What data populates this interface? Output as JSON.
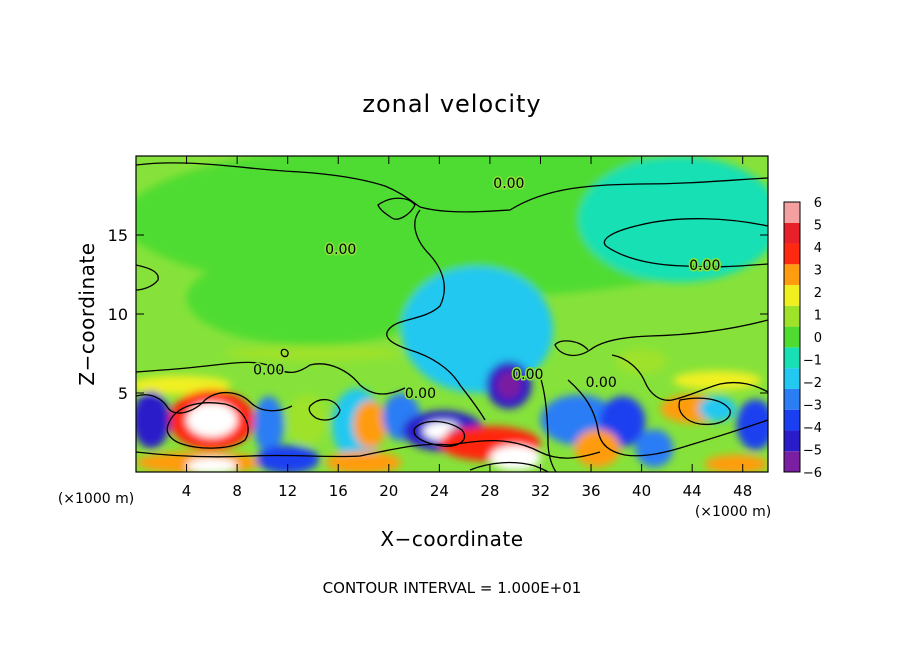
{
  "chart_data": {
    "type": "heatmap",
    "title": "zonal velocity",
    "xlabel": "X−coordinate",
    "ylabel": "Z−coordinate",
    "x_unit_left": "(×1000 m)",
    "x_unit_right": "(×1000 m)",
    "footer": "CONTOUR INTERVAL = 1.000E+01",
    "xlim": [
      0,
      50
    ],
    "ylim": [
      0,
      20
    ],
    "x_ticks": [
      4,
      8,
      12,
      16,
      20,
      24,
      28,
      32,
      36,
      40,
      44,
      48
    ],
    "x_tick_labels": [
      "4",
      "8",
      "12",
      "16",
      "20",
      "24",
      "28",
      "32",
      "36",
      "40",
      "44",
      "48"
    ],
    "y_ticks": [
      5,
      10,
      15
    ],
    "y_tick_labels": [
      "5",
      "10",
      "15"
    ],
    "colorbar": {
      "levels": [
        -6,
        -5,
        -4,
        -3,
        -2,
        -1,
        0,
        1,
        2,
        3,
        4,
        5,
        6
      ],
      "labels": [
        "6",
        "5",
        "4",
        "3",
        "2",
        "1",
        "0",
        "−1",
        "−2",
        "−3",
        "−4",
        "−5",
        "−6"
      ],
      "colors": [
        "#7a1fa2",
        "#2a1cc9",
        "#1a3ff0",
        "#2a7df5",
        "#22c8f0",
        "#19e0b4",
        "#4fdc30",
        "#9ee22a",
        "#f0f020",
        "#ff9c10",
        "#ff2810",
        "#e8202a",
        "#f5a0a0"
      ]
    },
    "background_color": "#86e23a",
    "contour_labels": [
      {
        "text": "0.00",
        "x": 16.2,
        "z": 14.1
      },
      {
        "text": "0.00",
        "x": 29.5,
        "z": 18.3
      },
      {
        "text": "0.00",
        "x": 45.0,
        "z": 13.1
      },
      {
        "text": "0.00",
        "x": 31.0,
        "z": 6.2
      },
      {
        "text": "0.00",
        "x": 10.5,
        "z": 6.5
      },
      {
        "text": "0.00",
        "x": 36.8,
        "z": 5.7
      },
      {
        "text": "0.00",
        "x": 22.5,
        "z": 5.0
      }
    ],
    "regions": [
      {
        "x": 25,
        "z": 16,
        "rx": 26,
        "rz": 5,
        "v": 0.3
      },
      {
        "x": 43,
        "z": 16,
        "rx": 8,
        "rz": 4,
        "v": -0.7
      },
      {
        "x": 14,
        "z": 11,
        "rx": 10,
        "rz": 3,
        "v": 0.8
      },
      {
        "x": 27,
        "z": 9,
        "rx": 6,
        "rz": 4,
        "v": -1.2
      },
      {
        "x": 28,
        "z": 7,
        "rx": 3,
        "rz": 2,
        "v": -2.0
      },
      {
        "x": 29.5,
        "z": 5.5,
        "rx": 1.8,
        "rz": 1.5,
        "v": -4.5
      },
      {
        "x": 29.5,
        "z": 5.5,
        "rx": 1.0,
        "rz": 0.9,
        "v": -5.3
      },
      {
        "x": 3.5,
        "z": 5.5,
        "rx": 4,
        "rz": 0.6,
        "v": 2.5
      },
      {
        "x": 14,
        "z": 7.5,
        "rx": 7,
        "rz": 0.5,
        "v": 1.6
      },
      {
        "x": 6,
        "z": 3.3,
        "rx": 3.4,
        "rz": 1.9,
        "v": 4.2
      },
      {
        "x": 6,
        "z": 3.3,
        "rx": 2.0,
        "rz": 1.1,
        "v": 6.5
      },
      {
        "x": 1.2,
        "z": 3.3,
        "rx": 1.5,
        "rz": 1.8,
        "v": -4.8
      },
      {
        "x": 10.5,
        "z": 3.0,
        "rx": 1.2,
        "rz": 1.8,
        "v": -2.6
      },
      {
        "x": 13.5,
        "z": 3.3,
        "rx": 1.6,
        "rz": 1.6,
        "v": 1.3
      },
      {
        "x": 17.5,
        "z": 3.0,
        "rx": 2.0,
        "rz": 2.3,
        "v": -1.3
      },
      {
        "x": 18.5,
        "z": 3.0,
        "rx": 1.3,
        "rz": 1.5,
        "v": 3.5
      },
      {
        "x": 21.0,
        "z": 3.5,
        "rx": 1.5,
        "rz": 1.5,
        "v": -2.6
      },
      {
        "x": 24.3,
        "z": 2.6,
        "rx": 3.2,
        "rz": 1.3,
        "v": -4.6
      },
      {
        "x": 24.3,
        "z": 2.6,
        "rx": 1.6,
        "rz": 0.6,
        "v": 6.5
      },
      {
        "x": 25.8,
        "z": 2.3,
        "rx": 1.2,
        "rz": 0.6,
        "v": -5.8
      },
      {
        "x": 28,
        "z": 1.8,
        "rx": 4,
        "rz": 1.1,
        "v": 4.0
      },
      {
        "x": 30,
        "z": 0.9,
        "rx": 2.0,
        "rz": 0.8,
        "v": 6.5
      },
      {
        "x": 5,
        "z": 0.6,
        "rx": 5,
        "rz": 0.7,
        "v": 3.8
      },
      {
        "x": 6,
        "z": 0.4,
        "rx": 2.0,
        "rz": 0.5,
        "v": 6.5
      },
      {
        "x": 18,
        "z": 0.6,
        "rx": 3,
        "rz": 0.7,
        "v": 3.8
      },
      {
        "x": 12,
        "z": 0.8,
        "rx": 2.5,
        "rz": 0.9,
        "v": -3.8
      },
      {
        "x": 35,
        "z": 3.3,
        "rx": 3,
        "rz": 1.6,
        "v": -2.4
      },
      {
        "x": 38.5,
        "z": 3.2,
        "rx": 1.8,
        "rz": 1.6,
        "v": -3.6
      },
      {
        "x": 36.5,
        "z": 1.5,
        "rx": 1.8,
        "rz": 1.2,
        "v": 3.0
      },
      {
        "x": 41,
        "z": 1.5,
        "rx": 1.5,
        "rz": 1.2,
        "v": -2.8
      },
      {
        "x": 44,
        "z": 4.0,
        "rx": 2.5,
        "rz": 0.9,
        "v": 3.5
      },
      {
        "x": 46,
        "z": 4.0,
        "rx": 1.5,
        "rz": 0.8,
        "v": -2.0
      },
      {
        "x": 49,
        "z": 3.0,
        "rx": 1.5,
        "rz": 1.6,
        "v": -3.6
      },
      {
        "x": 47.5,
        "z": 0.5,
        "rx": 2.5,
        "rz": 0.6,
        "v": 3.2
      },
      {
        "x": 40,
        "z": 7.0,
        "rx": 2.0,
        "rz": 0.8,
        "v": 1.5
      },
      {
        "x": 46,
        "z": 5.8,
        "rx": 3.5,
        "rz": 0.6,
        "v": 2.0
      }
    ]
  }
}
